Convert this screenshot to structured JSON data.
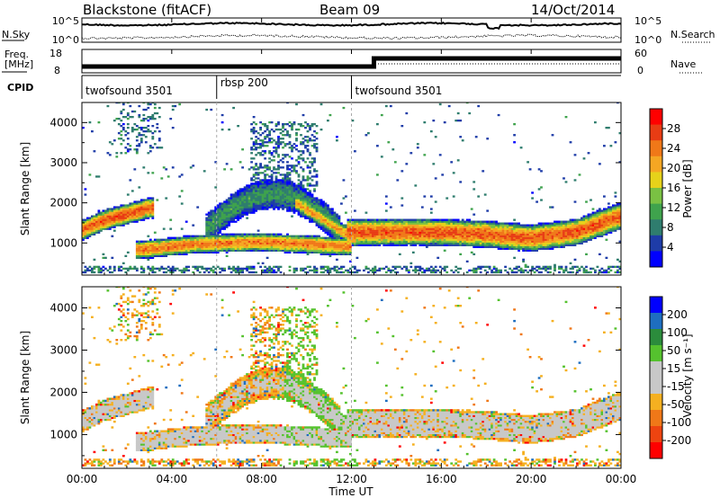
{
  "header": {
    "station": "Blackstone (fitACF)",
    "beam": "Beam 09",
    "date": "14/Oct/2014"
  },
  "noise_panel": {
    "left_label": "N.Sky",
    "right_label": "N.Search",
    "left_ticks": [
      "10^5",
      "10^0"
    ],
    "right_ticks": [
      "10^5",
      "10^0"
    ]
  },
  "freq_panel": {
    "left_label_1": "Freq.",
    "left_label_2": "[MHz]",
    "right_label": "Nave",
    "left_ticks": [
      "18",
      "8"
    ],
    "right_ticks": [
      "60",
      "0"
    ]
  },
  "cpid_panel": {
    "label": "CPID",
    "segments": [
      {
        "start": 0,
        "end": 6,
        "name": "twofsound 3501"
      },
      {
        "start": 6,
        "end": 12,
        "name": "rbsp 200"
      },
      {
        "start": 12,
        "end": 24,
        "name": "twofsound 3501"
      }
    ]
  },
  "x_axis": {
    "title": "Time UT",
    "ticks": [
      {
        "v": 0,
        "label": "00:00"
      },
      {
        "v": 4,
        "label": "04:00"
      },
      {
        "v": 8,
        "label": "08:00"
      },
      {
        "v": 12,
        "label": "12:00"
      },
      {
        "v": 16,
        "label": "16:00"
      },
      {
        "v": 20,
        "label": "20:00"
      },
      {
        "v": 24,
        "label": "00:00"
      }
    ]
  },
  "colors": {
    "power": [
      "#0000ff",
      "#1e3ca8",
      "#2f7d6e",
      "#3fa34d",
      "#7ac143",
      "#e6d21a",
      "#f5a623",
      "#f07818",
      "#e83c14",
      "#ff0000"
    ],
    "velocity": [
      "#ff0000",
      "#ee4410",
      "#f07818",
      "#f5b020",
      "#c8c8c8",
      "#c8c8c8",
      "#55c22e",
      "#2b8c3c",
      "#1e6ec0",
      "#0000ff"
    ],
    "ground_scatter": "#b4b4b4",
    "velocity_gray": "#c8c8c8"
  },
  "chart_data": [
    {
      "type": "heatmap",
      "panel": "power",
      "ylabel": "Slant Range [km]",
      "ylim": [
        200,
        4500
      ],
      "xlim": [
        0,
        24
      ],
      "yticks": [
        1000,
        2000,
        3000,
        4000
      ],
      "colorbar": {
        "title": "Power [dB]",
        "ticks": [
          "28",
          "24",
          "20",
          "16",
          "12",
          "8",
          "4"
        ],
        "range": [
          0,
          32
        ]
      },
      "features": [
        {
          "name": "main-band-early",
          "t": [
            0,
            1,
            2,
            3
          ],
          "range_km": [
            1300,
            1550,
            1700,
            1850
          ],
          "peak_db": 26
        },
        {
          "name": "main-band-midday",
          "t": [
            2.5,
            5,
            8,
            10,
            11.5
          ],
          "range_km": [
            800,
            950,
            1000,
            950,
            900
          ],
          "peak_db": 24
        },
        {
          "name": "main-band-late",
          "t": [
            12,
            14,
            16,
            18,
            20,
            22,
            24
          ],
          "range_km": [
            1250,
            1250,
            1250,
            1200,
            1100,
            1250,
            1650
          ],
          "peak_db": 26
        }
      ]
    },
    {
      "type": "heatmap",
      "panel": "velocity",
      "ylabel": "Slant Range [km]",
      "ylim": [
        200,
        4500
      ],
      "xlim": [
        0,
        24
      ],
      "yticks": [
        1000,
        2000,
        3000,
        4000
      ],
      "colorbar": {
        "title": "Velocity [m s⁻¹]",
        "ticks": [
          "200",
          "100",
          "50",
          "15",
          "-15",
          "-50",
          "-100",
          "-200"
        ],
        "range": [
          -250,
          250
        ]
      }
    }
  ]
}
